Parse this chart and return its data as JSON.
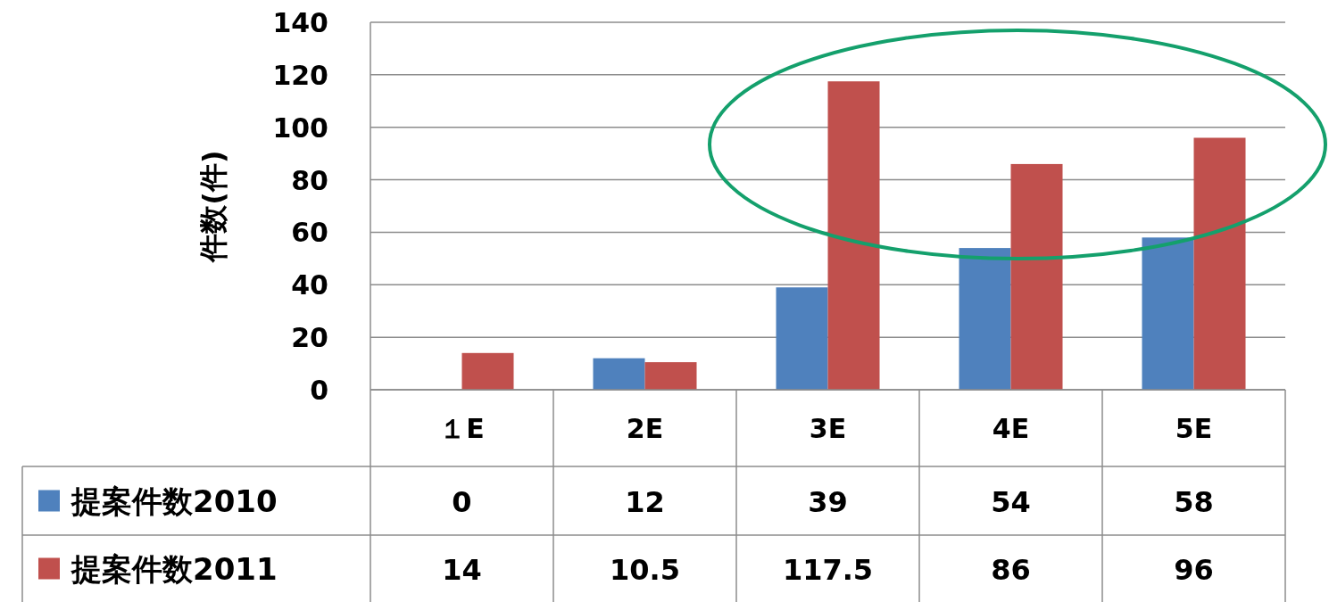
{
  "chart_data": {
    "type": "bar",
    "ylabel": "件数(件)",
    "categories": [
      "１E",
      "2E",
      "3E",
      "4E",
      "5E"
    ],
    "series": [
      {
        "name": "提案件数2010",
        "color": "#4f81bd",
        "values": [
          0,
          12,
          39,
          54,
          58
        ]
      },
      {
        "name": "提案件数2011",
        "color": "#c0504d",
        "values": [
          14,
          10.5,
          117.5,
          86,
          96
        ]
      }
    ],
    "ylim": [
      0,
      140
    ],
    "yticks": [
      0,
      20,
      40,
      60,
      80,
      100,
      120,
      140
    ],
    "grid": "y",
    "data_labels": true,
    "legend": "bottom left"
  }
}
